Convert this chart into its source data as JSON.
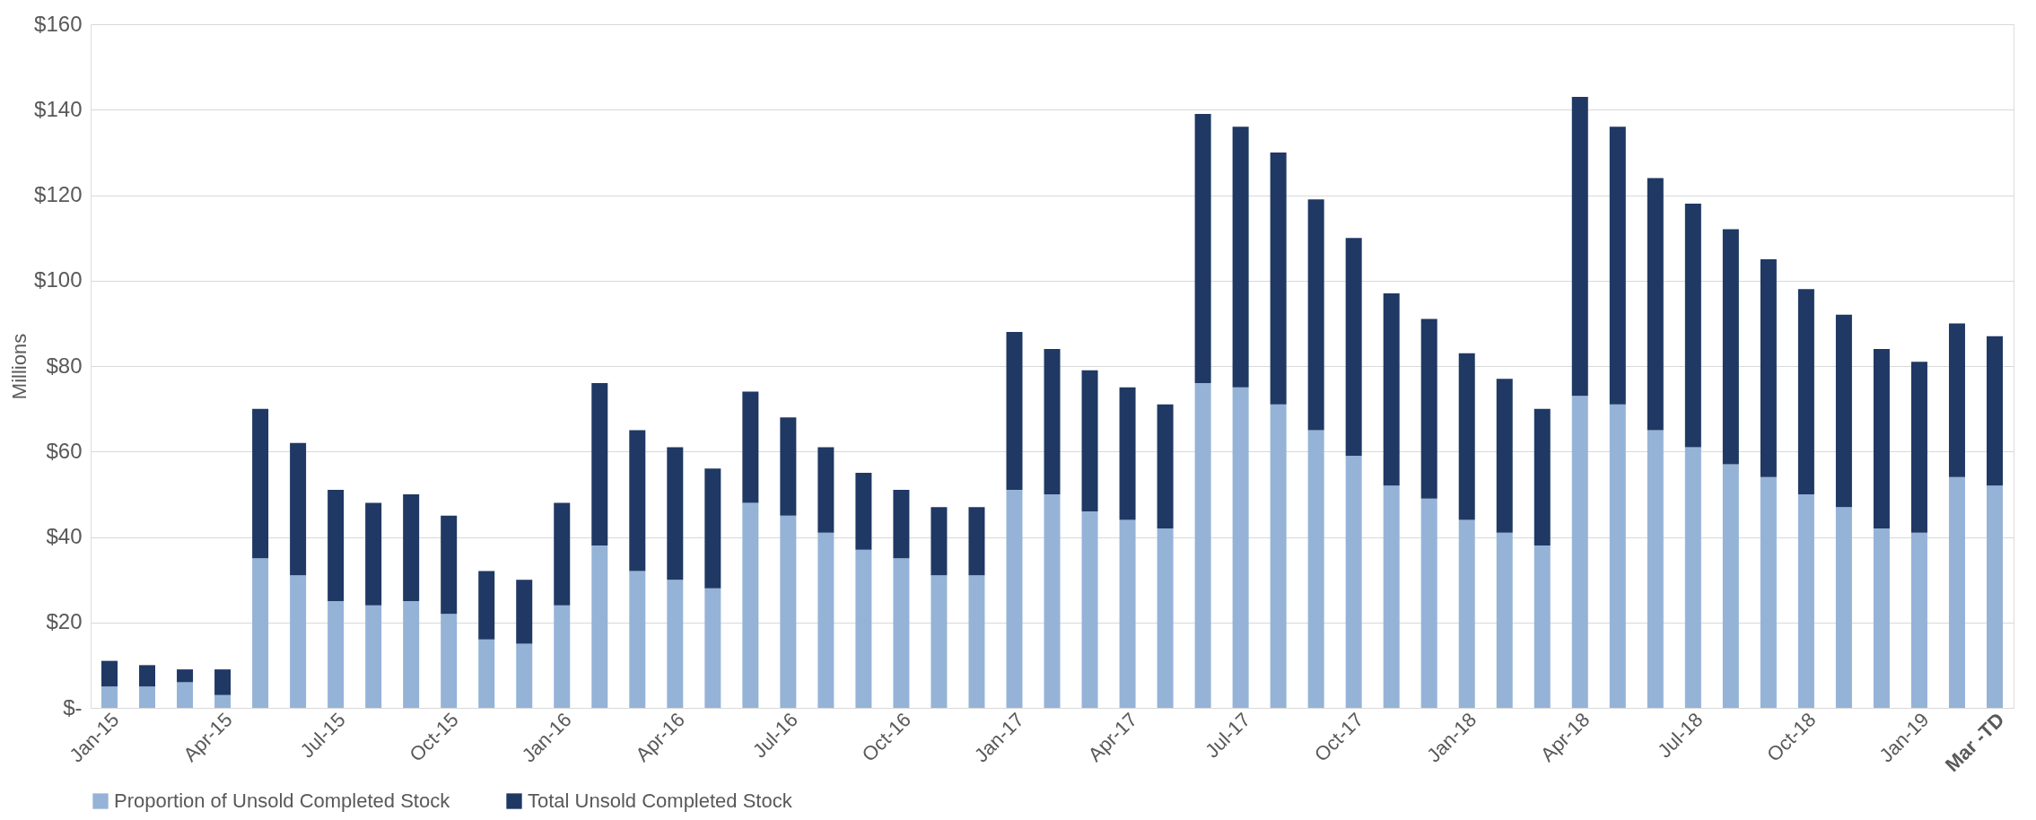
{
  "chart_data": {
    "type": "bar",
    "stacked": true,
    "ylabel": "Millions",
    "categories": [
      "Jan-15",
      null,
      null,
      "Apr-15",
      null,
      null,
      "Jul-15",
      null,
      null,
      "Oct-15",
      null,
      null,
      "Jan-16",
      null,
      null,
      "Apr-16",
      null,
      null,
      "Jul-16",
      null,
      null,
      "Oct-16",
      null,
      null,
      "Jan-17",
      null,
      null,
      "Apr-17",
      null,
      null,
      "Jul-17",
      null,
      null,
      "Oct-17",
      null,
      null,
      "Jan-18",
      null,
      null,
      "Apr-18",
      null,
      null,
      "Jul-18",
      null,
      null,
      "Oct-18",
      null,
      null,
      "Jan-19",
      null,
      "Mar -TD"
    ],
    "series": [
      {
        "name": "Proportion of Unsold Completed Stock",
        "color": "#95b3d7",
        "values": [
          5,
          5,
          6,
          3,
          35,
          31,
          25,
          24,
          25,
          22,
          16,
          15,
          24,
          38,
          32,
          30,
          28,
          48,
          45,
          41,
          37,
          35,
          31,
          31,
          51,
          50,
          46,
          44,
          42,
          76,
          75,
          71,
          65,
          59,
          52,
          49,
          44,
          41,
          38,
          73,
          71,
          65,
          61,
          57,
          54,
          50,
          47,
          42,
          41,
          54,
          52
        ]
      },
      {
        "name": "Total Unsold Completed Stock",
        "color": "#1f3864",
        "values": [
          6,
          5,
          3,
          6,
          35,
          31,
          26,
          24,
          25,
          23,
          16,
          15,
          24,
          38,
          33,
          31,
          28,
          26,
          23,
          20,
          18,
          16,
          16,
          16,
          37,
          34,
          33,
          31,
          29,
          63,
          61,
          59,
          54,
          51,
          45,
          42,
          39,
          36,
          32,
          70,
          65,
          59,
          57,
          55,
          51,
          48,
          45,
          42,
          40,
          36,
          35
        ]
      }
    ],
    "ylim": [
      0,
      160
    ],
    "yticks": [
      {
        "value": 0,
        "label": "$-"
      },
      {
        "value": 20,
        "label": "$20"
      },
      {
        "value": 40,
        "label": "$40"
      },
      {
        "value": 60,
        "label": "$60"
      },
      {
        "value": 80,
        "label": "$80"
      },
      {
        "value": 100,
        "label": "$100"
      },
      {
        "value": 120,
        "label": "$120"
      },
      {
        "value": 140,
        "label": "$140"
      },
      {
        "value": 160,
        "label": "$160"
      }
    ],
    "grid": "y",
    "legend": "bottom"
  }
}
